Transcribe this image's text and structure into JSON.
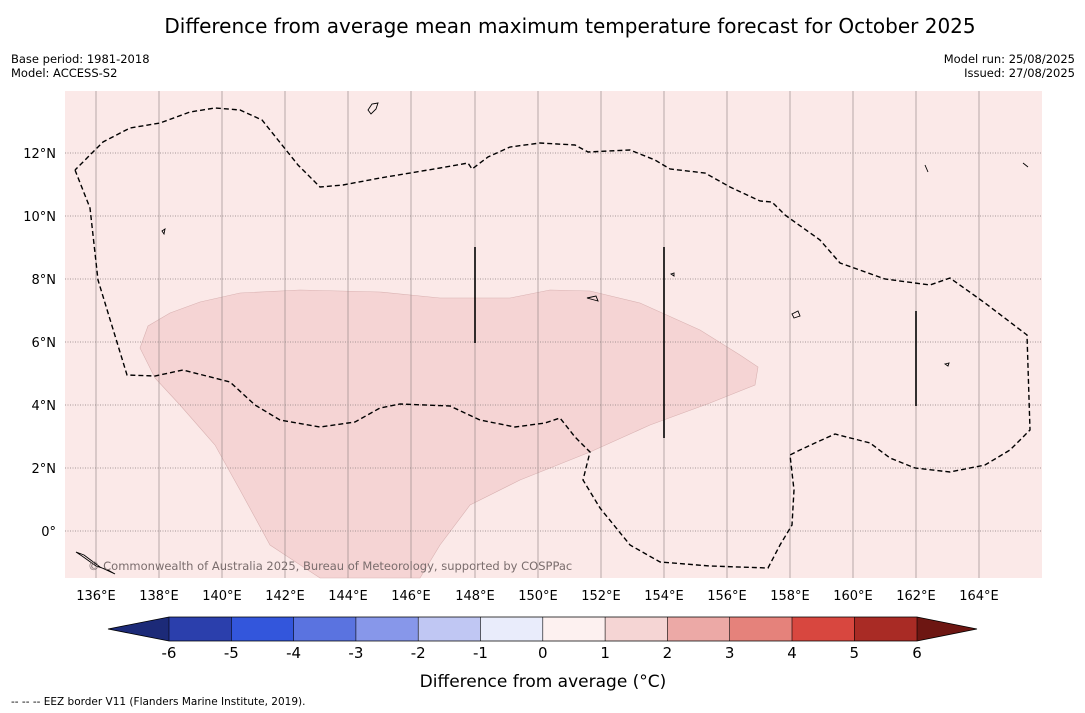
{
  "title": "Difference from average mean maximum temperature forecast for October 2025",
  "info_left": {
    "base_period": "Base period: 1981-2018",
    "model": "Model: ACCESS-S2"
  },
  "info_right": {
    "model_run": "Model run: 25/08/2025",
    "issued": "Issued: 27/08/2025"
  },
  "map": {
    "lon_labels": [
      "136°E",
      "138°E",
      "140°E",
      "142°E",
      "144°E",
      "146°E",
      "148°E",
      "150°E",
      "152°E",
      "154°E",
      "156°E",
      "158°E",
      "160°E",
      "162°E",
      "164°E"
    ],
    "lat_labels": [
      "12°N",
      "10°N",
      "8°N",
      "6°N",
      "4°N",
      "2°N",
      "0°"
    ],
    "watermark": "© Commonwealth of Australia 2025, Bureau of Meteorology, supported by COSPPac",
    "background_color": "#fbe9e8",
    "anomaly_region_color": "#f5d4d4"
  },
  "colorbar": {
    "label": "Difference from average (°C)",
    "ticks": [
      "-6",
      "-5",
      "-4",
      "-3",
      "-2",
      "-1",
      "0",
      "1",
      "2",
      "3",
      "4",
      "5",
      "6"
    ],
    "colors": [
      "#1c2a78",
      "#2b3fac",
      "#3356dc",
      "#5a73e0",
      "#8797ea",
      "#c0c7f3",
      "#e9ecfb",
      "#fdf1f0",
      "#f5d5d4",
      "#eca9a6",
      "#e5827b",
      "#d8473f",
      "#a92b25",
      "#6d1612"
    ]
  },
  "footnote": "--  --  -- EEZ border V11 (Flanders Marine Institute, 2019)."
}
